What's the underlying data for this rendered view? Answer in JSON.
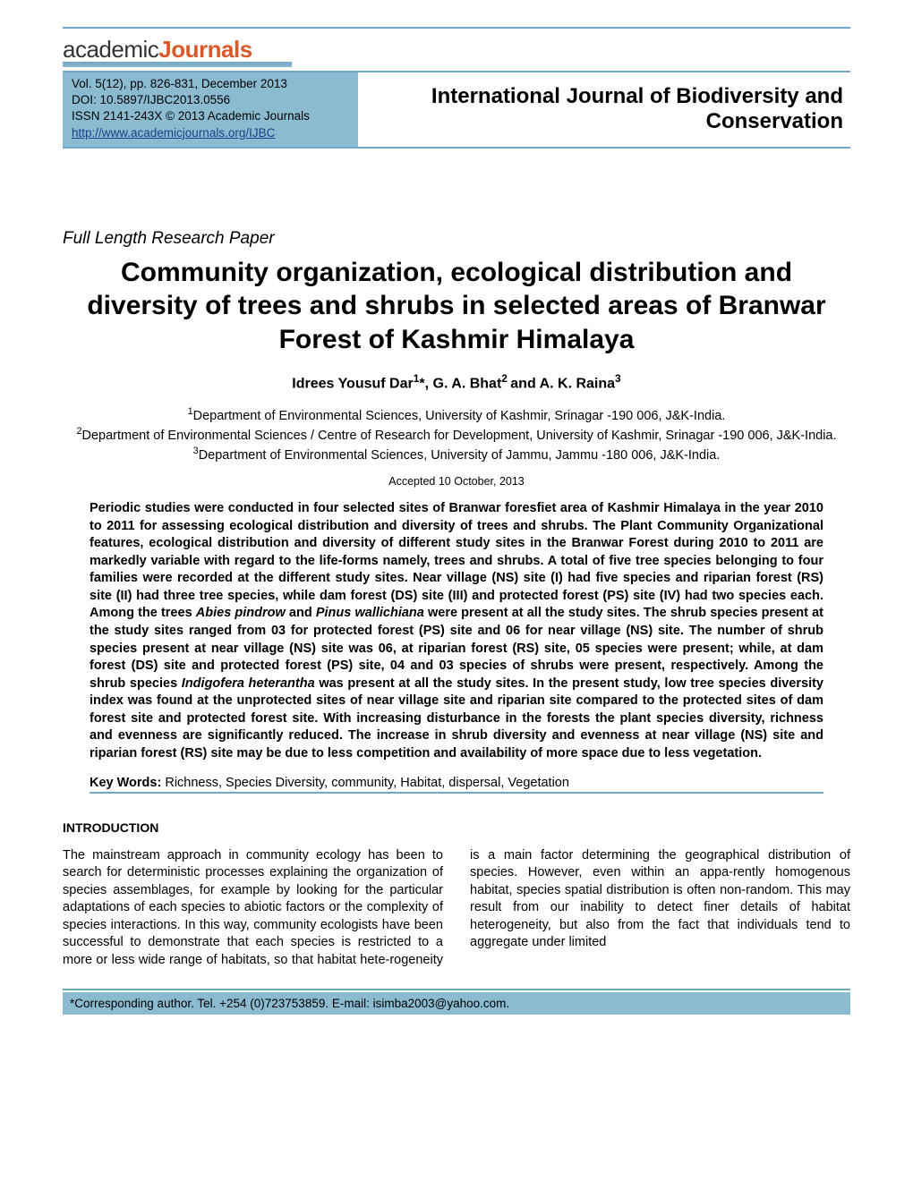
{
  "logo": {
    "prefix": "academic",
    "suffix": "Journals"
  },
  "citation": {
    "line1": "Vol. 5(12), pp. 826-831, December  2013",
    "line2": "DOI: 10.5897/IJBC2013.0556",
    "line3": "ISSN 2141-243X © 2013 Academic Journals",
    "link": "http://www.academicjournals.org/IJBC"
  },
  "journal": {
    "line1": "International Journal of Biodiversity and",
    "line2": "Conservation"
  },
  "article_type": "Full Length Research Paper",
  "title": "Community organization, ecological distribution and diversity of trees and shrubs in selected areas of Branwar Forest of Kashmir Himalaya",
  "authors_html": "Idrees Yousuf Dar<sup>1</sup>*, G. A. Bhat<sup>2 </sup>and A. K. Raina<sup>3</sup>",
  "affils": {
    "a1": "Department of Environmental Sciences, University of Kashmir, Srinagar -190 006, J&K-India.",
    "a2": "Department of Environmental Sciences / Centre of Research for Development, University of Kashmir, Srinagar -190 006, J&K-India.",
    "a3": "Department of Environmental Sciences, University of Jammu, Jammu -180 006, J&K-India."
  },
  "accepted": "Accepted 10 October, 2013",
  "abstract_html": "Periodic studies were conducted in four selected sites of Branwar foresfiet area of Kashmir Himalaya in the year 2010 to 2011 for assessing ecological distribution and diversity of trees and shrubs. The Plant Community Organizational features, ecological distribution and diversity of different study sites in the Branwar Forest during 2010 to 2011 are markedly variable with regard to the life-forms namely, trees and shrubs. A total of five tree species belonging to four families were recorded at the different study sites. Near village (NS) site (I) had five species and riparian forest (RS) site (II) had three tree species, while dam forest (DS) site (III) and protected forest (PS) site (IV) had two species each. Among the trees <span class=\"ital\">Abies pindrow</span> and <span class=\"ital\">Pinus wallichiana</span> were present at all the study sites. The shrub species present at the study sites ranged from 03 for protected forest (PS) site and 06 for near village (NS) site. The number of shrub species present at near village (NS) site was 06, at riparian forest (RS) site, 05 species were present; while, at dam forest (DS) site and protected forest (PS) site, 04 and 03 species of shrubs were present, respectively. Among the shrub species <span class=\"ital\">Indigofera heterantha</span> was present at all the study sites. In the present study, low tree species diversity index was found at the unprotected sites of near village site and riparian site compared to the protected sites of dam forest site and protected forest site. With increasing disturbance in the forests the plant species diversity, richness and evenness are significantly reduced. The increase in shrub diversity and evenness at near village (NS) site and riparian forest (RS) site may be due to less competition and availability of more space due to less vegetation.",
  "keywords": {
    "label": "Key Words:",
    "text": " Richness, Species Diversity, community, Habitat, dispersal, Vegetation"
  },
  "intro_head": "INTRODUCTION",
  "body_col1": "The mainstream approach in community ecology has been to search for deterministic processes explaining the organization of species assemblages, for example by looking for the particular adaptations of each species to abiotic factors or the complexity of species interactions. In this way, community ecologists have been successful to demonstrate that each species is restricted to a more",
  "body_col2": "or less wide range of habitats, so that habitat hete-rogeneity is a main factor determining the geographical distribution of species. However, even within an appa-rently homogenous habitat, species spatial distribution is often non-random. This may result from our inability to detect finer details of habitat heterogeneity, but also from the fact that individuals tend to aggregate under limited",
  "corresponding": "*Corresponding author. Tel. +254 (0)723753859. E-mail: isimba2003@yahoo.com.",
  "colors": {
    "rule": "#6fa8c9",
    "band": "#8abbd0",
    "accent": "#d85a2a"
  }
}
